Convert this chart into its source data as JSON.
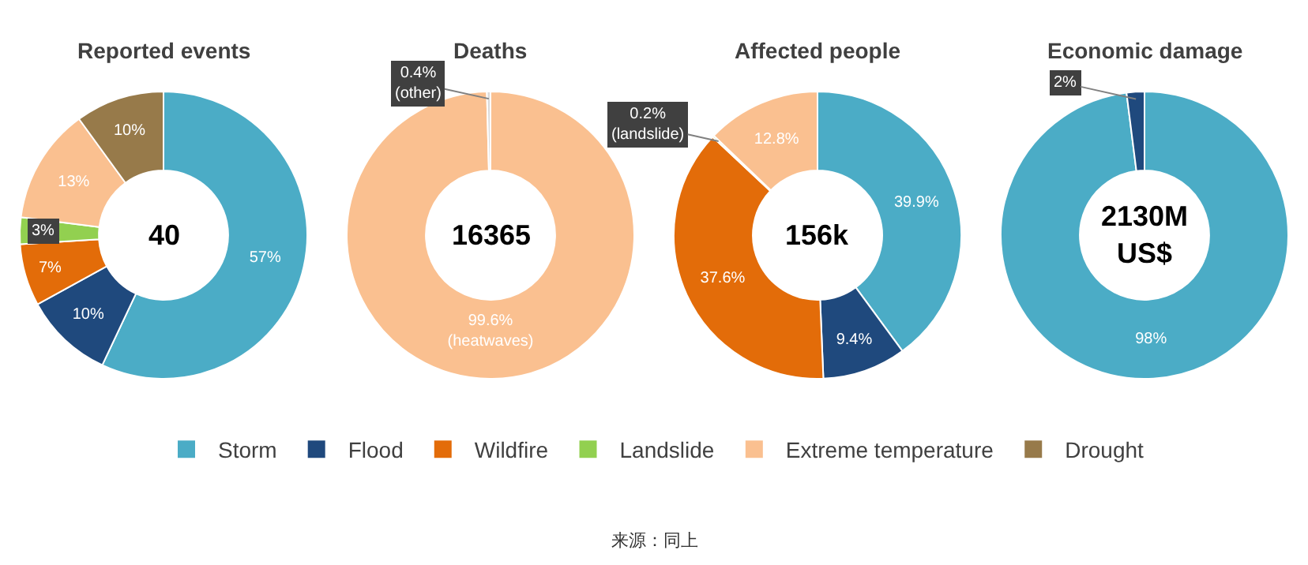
{
  "chart_data": [
    {
      "type": "donut",
      "title": "Reported events",
      "subtitle": "40",
      "legend": "bottom",
      "categories": [
        "Storm",
        "Flood",
        "Wildfire",
        "Landslide",
        "Extreme temperature",
        "Drought"
      ],
      "values": [
        57,
        10,
        7,
        3,
        13,
        10
      ],
      "colors": [
        "#4bacc6",
        "#1f497d",
        "#e36c09",
        "#92d050",
        "#fac090",
        "#977a4a"
      ],
      "value_labels": [
        "57%",
        "10%",
        "7%",
        "3%",
        "13%",
        "10%"
      ],
      "annotations": [
        "来源：同上"
      ]
    },
    {
      "type": "donut",
      "title": "Deaths",
      "subtitle": "16365",
      "categories": [
        null,
        null
      ],
      "values": [
        99.6,
        0.4
      ],
      "colors": [
        "#fac090",
        "#d9d9d9"
      ],
      "value_labels": [
        "99.6%\n(heatwaves)",
        "0.4%\n(other)"
      ]
    },
    {
      "type": "donut",
      "title": "Affected people",
      "subtitle": "156k",
      "categories": [
        null,
        null,
        null,
        null,
        null
      ],
      "values": [
        39.9,
        9.4,
        37.6,
        0.2,
        12.8
      ],
      "colors": [
        "#4bacc6",
        "#1f497d",
        "#e36c09",
        "#92d050",
        "#fac090"
      ],
      "value_labels": [
        "39.9%",
        "9.4%",
        "37.6%",
        "0.2%\n(landslide)",
        "12.8%"
      ]
    },
    {
      "type": "donut",
      "title": "Economic damage",
      "subtitle": "2130M\nUS$",
      "categories": [
        null,
        null
      ],
      "values": [
        98,
        2
      ],
      "colors": [
        "#4bacc6",
        "#1f497d"
      ],
      "value_labels": [
        "98%",
        "2%"
      ]
    }
  ]
}
